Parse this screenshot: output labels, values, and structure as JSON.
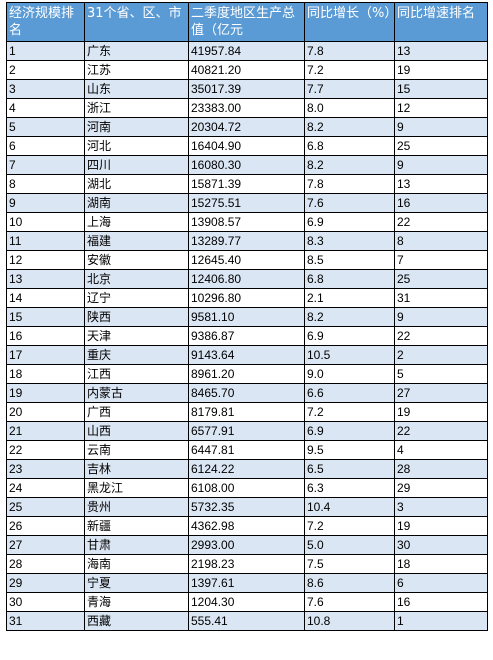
{
  "table": {
    "headers": [
      "经济规模排名",
      "31个省、区、市",
      "二季度地区生产总值（亿元",
      "同比增长（%）",
      "同比增速排名"
    ],
    "rows": [
      [
        "1",
        "广东",
        "41957.84",
        "7.8",
        "13"
      ],
      [
        "2",
        "江苏",
        "40821.20",
        "7.2",
        "19"
      ],
      [
        "3",
        "山东",
        "35017.39",
        "7.7",
        "15"
      ],
      [
        "4",
        "浙江",
        "23383.00",
        "8.0",
        "12"
      ],
      [
        "5",
        "河南",
        "20304.72",
        "8.2",
        "9"
      ],
      [
        "6",
        "河北",
        "16404.90",
        "6.8",
        "25"
      ],
      [
        "7",
        "四川",
        "16080.30",
        "8.2",
        "9"
      ],
      [
        "8",
        "湖北",
        "15871.39",
        "7.8",
        "13"
      ],
      [
        "9",
        "湖南",
        "15275.51",
        "7.6",
        "16"
      ],
      [
        "10",
        "上海",
        "13908.57",
        "6.9",
        "22"
      ],
      [
        "11",
        "福建",
        "13289.77",
        "8.3",
        "8"
      ],
      [
        "12",
        "安徽",
        "12645.40",
        "8.5",
        "7"
      ],
      [
        "13",
        "北京",
        "12406.80",
        "6.8",
        "25"
      ],
      [
        "14",
        "辽宁",
        "10296.80",
        "2.1",
        "31"
      ],
      [
        "15",
        "陕西",
        "9581.10",
        "8.2",
        "9"
      ],
      [
        "16",
        "天津",
        "9386.87",
        "6.9",
        "22"
      ],
      [
        "17",
        "重庆",
        "9143.64",
        "10.5",
        "2"
      ],
      [
        "18",
        "江西",
        "8961.20",
        "9.0",
        "5"
      ],
      [
        "19",
        "内蒙古",
        "8465.70",
        "6.6",
        "27"
      ],
      [
        "20",
        "广西",
        "8179.81",
        "7.2",
        "19"
      ],
      [
        "21",
        "山西",
        "6577.91",
        "6.9",
        "22"
      ],
      [
        "22",
        "云南",
        "6447.81",
        "9.5",
        "4"
      ],
      [
        "23",
        "吉林",
        "6124.22",
        "6.5",
        "28"
      ],
      [
        "24",
        "黑龙江",
        "6108.00",
        "6.3",
        "29"
      ],
      [
        "25",
        "贵州",
        "5732.35",
        "10.4",
        "3"
      ],
      [
        "26",
        "新疆",
        "4362.98",
        "7.2",
        "19"
      ],
      [
        "27",
        "甘肃",
        "2993.00",
        "5.0",
        "30"
      ],
      [
        "28",
        "海南",
        "2198.23",
        "7.5",
        "18"
      ],
      [
        "29",
        "宁夏",
        "1397.61",
        "8.6",
        "6"
      ],
      [
        "30",
        "青海",
        "1204.30",
        "7.6",
        "16"
      ],
      [
        "31",
        "西藏",
        "555.41",
        "10.8",
        "1"
      ]
    ]
  }
}
